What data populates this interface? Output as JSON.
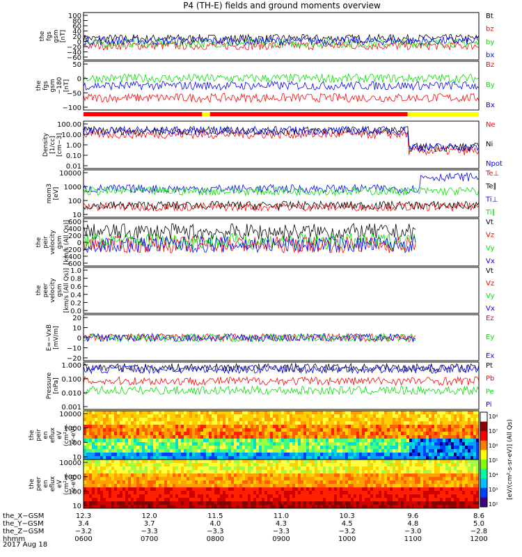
{
  "title": "P4 (TH-E) fields and ground moments overview",
  "colors": {
    "black": "#000000",
    "red": "#ff0000",
    "green": "#00e000",
    "blue": "#0000ff",
    "yellow": "#ffff00"
  },
  "chart_data": [
    {
      "id": "ffs",
      "type": "line",
      "ylabel": [
        "the",
        "fgs",
        "gsm",
        "[nT]"
      ],
      "yticks": [
        "100",
        "80",
        "60",
        "40",
        "20",
        "0",
        "−20",
        "−40",
        "−60"
      ],
      "series": [
        {
          "name": "Bt",
          "color": "black",
          "level": 0.45
        },
        {
          "name": "bz",
          "color": "red",
          "level": 0.3
        },
        {
          "name": "by",
          "color": "green",
          "level": 0.35
        },
        {
          "name": "bx",
          "color": "blue",
          "level": 0.4
        }
      ]
    },
    {
      "id": "fgs_seg",
      "type": "line",
      "ylabel": [
        "the",
        "fgs",
        "gsm",
        "−180",
        "[nT]"
      ],
      "yticks": [
        "50",
        "0",
        "−50",
        "−100"
      ],
      "series": [
        {
          "name": "Bz",
          "color": "red",
          "level": 0.25
        },
        {
          "name": "By",
          "color": "green",
          "level": 0.65
        },
        {
          "name": "Bx",
          "color": "blue",
          "level": 0.5
        }
      ]
    },
    {
      "id": "density",
      "type": "line",
      "ylabel": [
        "Density",
        "[1/cc]",
        "[cm−3]"
      ],
      "yticks": [
        "100.00",
        "10.00",
        "1.00",
        "0.10",
        "0.01"
      ],
      "series": [
        {
          "name": "Ne",
          "color": "red",
          "level": 0.72
        },
        {
          "name": "Ni",
          "color": "black",
          "level": 0.8
        },
        {
          "name": "Npot",
          "color": "blue",
          "level": 0.8
        }
      ]
    },
    {
      "id": "temp",
      "type": "line",
      "ylabel": [
        "mom3",
        "[eV]"
      ],
      "yticks": [
        "10000",
        "1000",
        "100",
        "10"
      ],
      "series": [
        {
          "name": "Te⊥",
          "color": "red",
          "level": 0.22
        },
        {
          "name": "Te∥",
          "color": "black",
          "level": 0.25
        },
        {
          "name": "Ti⊥",
          "color": "blue",
          "level": 0.6
        },
        {
          "name": "Ti∥",
          "color": "green",
          "level": 0.55
        }
      ]
    },
    {
      "id": "peir_vel",
      "type": "line",
      "ylabel": [
        "the",
        "peir",
        "velocity",
        "gsm",
        "[km/s (All Qs)]"
      ],
      "yticks": [
        "600",
        "400",
        "200",
        "0",
        "−200",
        "−400",
        "−600"
      ],
      "series": [
        {
          "name": "Vt",
          "color": "black",
          "level": 0.72
        },
        {
          "name": "Vz",
          "color": "red",
          "level": 0.45
        },
        {
          "name": "Vy",
          "color": "green",
          "level": 0.52
        },
        {
          "name": "Vx",
          "color": "blue",
          "level": 0.45
        }
      ]
    },
    {
      "id": "peer_vel",
      "type": "line",
      "ylabel": [
        "the",
        "peer",
        "velocity",
        "gsm",
        "[km/s (All Qs)]"
      ],
      "yticks": [
        "1.0",
        "0.8",
        "0.6",
        "0.4",
        "0.2",
        "0.0"
      ],
      "series": [
        {
          "name": "Vt",
          "color": "black"
        },
        {
          "name": "Vz",
          "color": "red"
        },
        {
          "name": "Vy",
          "color": "green"
        },
        {
          "name": "Vx",
          "color": "blue"
        }
      ]
    },
    {
      "id": "efield",
      "type": "line",
      "ylabel": [
        "E=−VxB",
        "[mV/m]"
      ],
      "yticks": [
        "20",
        "10",
        "0",
        "−10",
        "−20"
      ],
      "series": [
        {
          "name": "Ez",
          "color": "red",
          "level": 0.5
        },
        {
          "name": "Ey",
          "color": "green",
          "level": 0.5
        },
        {
          "name": "Ex",
          "color": "blue",
          "level": 0.5
        }
      ]
    },
    {
      "id": "pressure",
      "type": "line",
      "ylabel": [
        "Pressure",
        "[nPa]"
      ],
      "yticks": [
        "1.000",
        "0.100",
        "0.010",
        "0.001"
      ],
      "series": [
        {
          "name": "Pt",
          "color": "black",
          "level": 0.88
        },
        {
          "name": "Pb",
          "color": "red",
          "level": 0.6
        },
        {
          "name": "Pe",
          "color": "green",
          "level": 0.4
        },
        {
          "name": "Pi",
          "color": "blue",
          "level": 0.85
        }
      ]
    },
    {
      "id": "peir_eflux",
      "type": "heatmap",
      "ylabel": [
        "the",
        "peir",
        "en",
        "eflux",
        "eV",
        "(cm²-s-",
        "sr-eV)"
      ],
      "yticks": [
        "10000",
        "1000",
        "100",
        "10"
      ]
    },
    {
      "id": "peer_eflux",
      "type": "heatmap",
      "ylabel": [
        "the",
        "peer",
        "en",
        "eflux",
        "eV",
        "(cm²-s-",
        "sr-eV)"
      ],
      "yticks": [
        "10000",
        "1000",
        "100",
        "10"
      ]
    }
  ],
  "colorbar": {
    "label": "[eV/(cm²-s-sr-eV)] (All Qs)",
    "ticks": [
      "10⁸",
      "10⁷",
      "10⁶",
      "10⁵",
      "10⁴",
      "10³",
      "10²"
    ]
  },
  "xaxis": {
    "rows": [
      {
        "label": "the_X−GSM",
        "values": [
          "12.3",
          "12.0",
          "11.5",
          "11.0",
          "10.3",
          "9.6",
          "8.6"
        ]
      },
      {
        "label": "the_Y−GSM",
        "values": [
          "3.4",
          "3.7",
          "4.0",
          "4.3",
          "4.5",
          "4.8",
          "5.0"
        ]
      },
      {
        "label": "the_Z−GSM",
        "values": [
          "−3.2",
          "−3.3",
          "−3.3",
          "−3.3",
          "−3.2",
          "−3.0",
          "−2.8"
        ]
      },
      {
        "label": "hhmm",
        "values": [
          "0600",
          "0700",
          "0800",
          "0900",
          "1000",
          "1100",
          "1200"
        ]
      }
    ],
    "date": "2017 Aug 18"
  },
  "status_bar": {
    "colors": [
      "red",
      "yellow",
      "red",
      "yellow"
    ],
    "break_fractions": [
      0.0,
      0.3,
      0.32,
      0.82
    ]
  }
}
